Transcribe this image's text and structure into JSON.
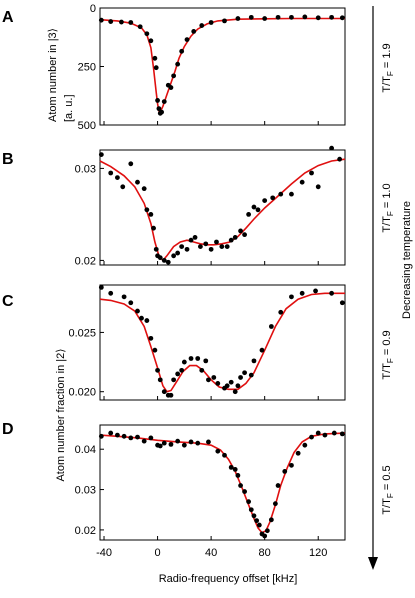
{
  "figure": {
    "decreasing_label": "Decreasing temperature",
    "xlabel": "Radio-frequency offset [kHz]",
    "ylabel_top": "Atom number in |3⟩",
    "ylabel_top_unit": "[a. u.]",
    "ylabel_bottom": "Atom number fraction in |2⟩",
    "xticks": [
      "-40",
      "0",
      "40",
      "80",
      "120"
    ]
  },
  "chart_data": [
    {
      "panel": "A",
      "type": "scatter",
      "temp_main": "T/T",
      "temp_sub": "F",
      "temp_value": " = 1.9",
      "xlim": [
        -43,
        140
      ],
      "ylim": [
        500,
        0
      ],
      "yticks": [
        "0",
        "250",
        "500"
      ],
      "ytick_values": [
        0,
        250,
        500
      ],
      "points": [
        [
          -42,
          52
        ],
        [
          -35,
          58
        ],
        [
          -27,
          60
        ],
        [
          -20,
          62
        ],
        [
          -13,
          80
        ],
        [
          -8,
          110
        ],
        [
          -5,
          140
        ],
        [
          -2,
          215
        ],
        [
          -1,
          255
        ],
        [
          0,
          395
        ],
        [
          1,
          430
        ],
        [
          2,
          450
        ],
        [
          3,
          445
        ],
        [
          5,
          400
        ],
        [
          8,
          330
        ],
        [
          10,
          340
        ],
        [
          12,
          290
        ],
        [
          15,
          240
        ],
        [
          18,
          185
        ],
        [
          22,
          135
        ],
        [
          27,
          100
        ],
        [
          33,
          75
        ],
        [
          40,
          62
        ],
        [
          50,
          55
        ],
        [
          60,
          45
        ],
        [
          70,
          40
        ],
        [
          80,
          45
        ],
        [
          90,
          40
        ],
        [
          100,
          40
        ],
        [
          110,
          38
        ],
        [
          120,
          42
        ],
        [
          130,
          40
        ],
        [
          138,
          42
        ]
      ],
      "fit": [
        [
          -43,
          50
        ],
        [
          -30,
          55
        ],
        [
          -20,
          65
        ],
        [
          -12,
          85
        ],
        [
          -8,
          115
        ],
        [
          -5,
          170
        ],
        [
          -3,
          260
        ],
        [
          -1,
          360
        ],
        [
          0,
          410
        ],
        [
          1,
          440
        ],
        [
          2,
          445
        ],
        [
          4,
          420
        ],
        [
          7,
          370
        ],
        [
          10,
          320
        ],
        [
          13,
          270
        ],
        [
          16,
          215
        ],
        [
          20,
          165
        ],
        [
          25,
          120
        ],
        [
          30,
          90
        ],
        [
          37,
          68
        ],
        [
          45,
          55
        ],
        [
          60,
          48
        ],
        [
          80,
          46
        ],
        [
          100,
          45
        ],
        [
          120,
          45
        ],
        [
          140,
          45
        ]
      ]
    },
    {
      "panel": "B",
      "type": "scatter",
      "temp_main": "T/T",
      "temp_sub": "F",
      "temp_value": " = 1.0",
      "xlim": [
        -43,
        140
      ],
      "ylim": [
        0.0195,
        0.032
      ],
      "yticks": [
        "0.03",
        "0.02"
      ],
      "ytick_values": [
        0.03,
        0.02
      ],
      "points": [
        [
          -42,
          0.0315
        ],
        [
          -35,
          0.0295
        ],
        [
          -30,
          0.029
        ],
        [
          -26,
          0.028
        ],
        [
          -20,
          0.0305
        ],
        [
          -15,
          0.0285
        ],
        [
          -10,
          0.0278
        ],
        [
          -8,
          0.0255
        ],
        [
          -5,
          0.025
        ],
        [
          -3,
          0.0235
        ],
        [
          -1,
          0.0212
        ],
        [
          0,
          0.0205
        ],
        [
          2,
          0.0203
        ],
        [
          5,
          0.02
        ],
        [
          8,
          0.0198
        ],
        [
          12,
          0.0205
        ],
        [
          15,
          0.0208
        ],
        [
          18,
          0.0215
        ],
        [
          22,
          0.0212
        ],
        [
          25,
          0.0222
        ],
        [
          28,
          0.0225
        ],
        [
          32,
          0.0215
        ],
        [
          36,
          0.0218
        ],
        [
          40,
          0.0212
        ],
        [
          44,
          0.022
        ],
        [
          48,
          0.0215
        ],
        [
          52,
          0.0215
        ],
        [
          55,
          0.0222
        ],
        [
          58,
          0.0225
        ],
        [
          62,
          0.0232
        ],
        [
          65,
          0.0228
        ],
        [
          68,
          0.025
        ],
        [
          72,
          0.0258
        ],
        [
          75,
          0.0255
        ],
        [
          80,
          0.0265
        ],
        [
          86,
          0.0268
        ],
        [
          92,
          0.0272
        ],
        [
          100,
          0.0272
        ],
        [
          108,
          0.0285
        ],
        [
          115,
          0.0295
        ],
        [
          120,
          0.028
        ],
        [
          130,
          0.0322
        ],
        [
          136,
          0.031
        ]
      ],
      "fit": [
        [
          -43,
          0.0308
        ],
        [
          -35,
          0.0302
        ],
        [
          -25,
          0.0292
        ],
        [
          -17,
          0.028
        ],
        [
          -10,
          0.0262
        ],
        [
          -5,
          0.024
        ],
        [
          -2,
          0.022
        ],
        [
          1,
          0.0205
        ],
        [
          4,
          0.02
        ],
        [
          7,
          0.0205
        ],
        [
          12,
          0.0215
        ],
        [
          17,
          0.022
        ],
        [
          22,
          0.0222
        ],
        [
          27,
          0.022
        ],
        [
          32,
          0.0218
        ],
        [
          37,
          0.0217
        ],
        [
          42,
          0.0217
        ],
        [
          48,
          0.0218
        ],
        [
          54,
          0.022
        ],
        [
          60,
          0.0226
        ],
        [
          66,
          0.0235
        ],
        [
          72,
          0.0245
        ],
        [
          80,
          0.0257
        ],
        [
          90,
          0.027
        ],
        [
          100,
          0.0283
        ],
        [
          110,
          0.0295
        ],
        [
          120,
          0.0303
        ],
        [
          130,
          0.0308
        ],
        [
          140,
          0.031
        ]
      ]
    },
    {
      "panel": "C",
      "type": "scatter",
      "temp_main": "T/T",
      "temp_sub": "F",
      "temp_value": " = 0.9",
      "xlim": [
        -43,
        140
      ],
      "ylim": [
        0.0193,
        0.029
      ],
      "yticks": [
        "0.025",
        "0.020"
      ],
      "ytick_values": [
        0.025,
        0.02
      ],
      "points": [
        [
          -42,
          0.0288
        ],
        [
          -35,
          0.0283
        ],
        [
          -25,
          0.028
        ],
        [
          -20,
          0.0275
        ],
        [
          -15,
          0.0268
        ],
        [
          -12,
          0.0262
        ],
        [
          -8,
          0.026
        ],
        [
          -5,
          0.0245
        ],
        [
          -2,
          0.0235
        ],
        [
          0,
          0.0218
        ],
        [
          2,
          0.021
        ],
        [
          5,
          0.02
        ],
        [
          8,
          0.0197
        ],
        [
          10,
          0.0197
        ],
        [
          12,
          0.021
        ],
        [
          15,
          0.0215
        ],
        [
          18,
          0.0218
        ],
        [
          20,
          0.0225
        ],
        [
          25,
          0.0228
        ],
        [
          30,
          0.0228
        ],
        [
          33,
          0.0218
        ],
        [
          36,
          0.0226
        ],
        [
          38,
          0.021
        ],
        [
          42,
          0.0212
        ],
        [
          45,
          0.0207
        ],
        [
          50,
          0.0203
        ],
        [
          52,
          0.0205
        ],
        [
          55,
          0.0208
        ],
        [
          58,
          0.02
        ],
        [
          60,
          0.0205
        ],
        [
          62,
          0.0212
        ],
        [
          65,
          0.0216
        ],
        [
          70,
          0.0214
        ],
        [
          72,
          0.0226
        ],
        [
          78,
          0.0235
        ],
        [
          85,
          0.0255
        ],
        [
          92,
          0.0267
        ],
        [
          100,
          0.028
        ],
        [
          108,
          0.0283
        ],
        [
          118,
          0.0285
        ],
        [
          130,
          0.0283
        ],
        [
          138,
          0.0275
        ]
      ],
      "fit": [
        [
          -43,
          0.0278
        ],
        [
          -35,
          0.0277
        ],
        [
          -25,
          0.0274
        ],
        [
          -17,
          0.0268
        ],
        [
          -10,
          0.0255
        ],
        [
          -5,
          0.0238
        ],
        [
          0,
          0.022
        ],
        [
          4,
          0.0205
        ],
        [
          7,
          0.02
        ],
        [
          10,
          0.0201
        ],
        [
          14,
          0.0208
        ],
        [
          19,
          0.0217
        ],
        [
          24,
          0.0222
        ],
        [
          29,
          0.0222
        ],
        [
          34,
          0.0218
        ],
        [
          40,
          0.021
        ],
        [
          46,
          0.0204
        ],
        [
          53,
          0.0202
        ],
        [
          60,
          0.0202
        ],
        [
          66,
          0.0207
        ],
        [
          72,
          0.0216
        ],
        [
          80,
          0.0235
        ],
        [
          88,
          0.0255
        ],
        [
          96,
          0.027
        ],
        [
          105,
          0.0278
        ],
        [
          115,
          0.0282
        ],
        [
          125,
          0.0283
        ],
        [
          140,
          0.0283
        ]
      ]
    },
    {
      "panel": "D",
      "type": "scatter",
      "temp_main": "T/T",
      "temp_sub": "F",
      "temp_value": " = 0.5",
      "xlim": [
        -43,
        140
      ],
      "ylim": [
        0.0175,
        0.046
      ],
      "yticks": [
        "0.04",
        "0.03",
        "0.02"
      ],
      "ytick_values": [
        0.04,
        0.03,
        0.02
      ],
      "points": [
        [
          -42,
          0.0432
        ],
        [
          -35,
          0.044
        ],
        [
          -30,
          0.0435
        ],
        [
          -25,
          0.0432
        ],
        [
          -20,
          0.0428
        ],
        [
          -15,
          0.043
        ],
        [
          -10,
          0.042
        ],
        [
          -5,
          0.0428
        ],
        [
          0,
          0.041
        ],
        [
          2,
          0.0408
        ],
        [
          5,
          0.0415
        ],
        [
          10,
          0.0412
        ],
        [
          15,
          0.042
        ],
        [
          20,
          0.041
        ],
        [
          25,
          0.0418
        ],
        [
          30,
          0.0415
        ],
        [
          38,
          0.0418
        ],
        [
          45,
          0.0395
        ],
        [
          50,
          0.0385
        ],
        [
          55,
          0.0355
        ],
        [
          58,
          0.035
        ],
        [
          60,
          0.0335
        ],
        [
          62,
          0.031
        ],
        [
          65,
          0.0295
        ],
        [
          68,
          0.027
        ],
        [
          70,
          0.025
        ],
        [
          72,
          0.0235
        ],
        [
          74,
          0.0223
        ],
        [
          76,
          0.0212
        ],
        [
          78,
          0.019
        ],
        [
          80,
          0.0185
        ],
        [
          82,
          0.0198
        ],
        [
          85,
          0.0225
        ],
        [
          88,
          0.0265
        ],
        [
          90,
          0.031
        ],
        [
          95,
          0.0345
        ],
        [
          100,
          0.036
        ],
        [
          105,
          0.039
        ],
        [
          110,
          0.041
        ],
        [
          115,
          0.043
        ],
        [
          120,
          0.044
        ],
        [
          125,
          0.0435
        ],
        [
          132,
          0.044
        ],
        [
          138,
          0.0438
        ]
      ],
      "fit": [
        [
          -43,
          0.0435
        ],
        [
          -30,
          0.0432
        ],
        [
          -15,
          0.0428
        ],
        [
          0,
          0.0422
        ],
        [
          15,
          0.0418
        ],
        [
          30,
          0.0415
        ],
        [
          40,
          0.041
        ],
        [
          47,
          0.0398
        ],
        [
          53,
          0.0375
        ],
        [
          58,
          0.0345
        ],
        [
          63,
          0.0305
        ],
        [
          68,
          0.0262
        ],
        [
          72,
          0.0228
        ],
        [
          75,
          0.0205
        ],
        [
          78,
          0.0193
        ],
        [
          81,
          0.0198
        ],
        [
          84,
          0.022
        ],
        [
          88,
          0.0262
        ],
        [
          92,
          0.031
        ],
        [
          97,
          0.0355
        ],
        [
          102,
          0.0392
        ],
        [
          108,
          0.0418
        ],
        [
          115,
          0.0432
        ],
        [
          125,
          0.0438
        ],
        [
          140,
          0.044
        ]
      ]
    }
  ]
}
